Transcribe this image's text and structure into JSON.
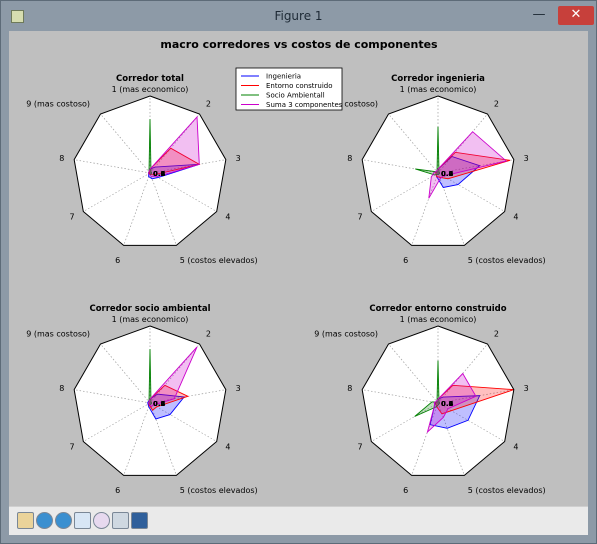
{
  "window": {
    "title": "Figure 1",
    "minimize_glyph": "—",
    "maximize_glyph": "☐",
    "close_glyph": "✕"
  },
  "toolbar": {
    "tools": [
      "home-icon",
      "back-arrow-icon",
      "forward-arrow-icon",
      "pan-icon",
      "zoom-icon",
      "configure-subplots-icon",
      "save-icon"
    ]
  },
  "colors": {
    "ingenieria": "#0000ff",
    "entorno": "#ff0000",
    "socio": "#008000",
    "suma": "#cc00cc",
    "figure_bg": "#bfbfbf"
  },
  "chart_data": {
    "type": "radar",
    "suptitle": "macro corredores vs costos de componentes",
    "axis_labels": [
      "1 (mas economico)",
      "2",
      "3",
      "4",
      "5 (costos elevados)",
      "6",
      "7",
      "8",
      "9 (mas costoso)"
    ],
    "center_tick_labels": [
      "0.8",
      "0.6",
      "0.4",
      "0.2"
    ],
    "rmax": 1.0,
    "legend": {
      "position": "top-center",
      "entries": [
        "Ingenieria",
        "Entorno construido",
        "Socio Ambientall",
        "Suma 3 componentes"
      ]
    },
    "panels": [
      {
        "title": "Corredor total",
        "series": [
          {
            "name": "Ingenieria",
            "values": [
              0.05,
              0.1,
              0.65,
              0.12,
              0.08,
              0.05,
              0.02,
              0.02,
              0.02
            ]
          },
          {
            "name": "Entorno construido",
            "values": [
              0.05,
              0.42,
              0.65,
              0.05,
              0.02,
              0.01,
              0.01,
              0.01,
              0.01
            ]
          },
          {
            "name": "Socio Ambientall",
            "values": [
              0.7,
              0.02,
              0.02,
              0.02,
              0.02,
              0.02,
              0.02,
              0.02,
              0.02
            ]
          },
          {
            "name": "Suma 3 componentes",
            "values": [
              0.05,
              0.95,
              0.65,
              0.1,
              0.05,
              0.02,
              0.02,
              0.02,
              0.02
            ]
          }
        ]
      },
      {
        "title": "Corredor ingenieria",
        "series": [
          {
            "name": "Ingenieria",
            "values": [
              0.05,
              0.28,
              0.55,
              0.3,
              0.2,
              0.05,
              0.03,
              0.03,
              0.03
            ]
          },
          {
            "name": "Entorno construido",
            "values": [
              0.05,
              0.35,
              0.95,
              0.15,
              0.06,
              0.05,
              0.03,
              0.03,
              0.03
            ]
          },
          {
            "name": "Socio Ambientall",
            "values": [
              0.6,
              0.02,
              0.02,
              0.02,
              0.02,
              0.02,
              0.05,
              0.3,
              0.02
            ]
          },
          {
            "name": "Suma 3 componentes",
            "values": [
              0.05,
              0.7,
              0.9,
              0.08,
              0.08,
              0.35,
              0.1,
              0.05,
              0.03
            ]
          }
        ]
      },
      {
        "title": "Corredor socio ambiental",
        "series": [
          {
            "name": "Ingenieria",
            "values": [
              0.05,
              0.15,
              0.45,
              0.3,
              0.22,
              0.05,
              0.03,
              0.03,
              0.03
            ]
          },
          {
            "name": "Entorno construido",
            "values": [
              0.05,
              0.3,
              0.5,
              0.1,
              0.1,
              0.03,
              0.02,
              0.02,
              0.02
            ]
          },
          {
            "name": "Socio Ambientall",
            "values": [
              0.7,
              0.02,
              0.02,
              0.02,
              0.02,
              0.02,
              0.02,
              0.02,
              0.02
            ]
          },
          {
            "name": "Suma 3 componentes",
            "values": [
              0.05,
              0.95,
              0.32,
              0.05,
              0.05,
              0.02,
              0.02,
              0.02,
              0.02
            ]
          }
        ]
      },
      {
        "title": "Corredor entorno construido",
        "series": [
          {
            "name": "Ingenieria",
            "values": [
              0.05,
              0.1,
              0.55,
              0.45,
              0.35,
              0.3,
              0.05,
              0.03,
              0.03
            ]
          },
          {
            "name": "Entorno construido",
            "values": [
              0.05,
              0.3,
              1.0,
              0.2,
              0.15,
              0.05,
              0.03,
              0.03,
              0.03
            ]
          },
          {
            "name": "Socio Ambientall",
            "values": [
              0.55,
              0.02,
              0.02,
              0.02,
              0.02,
              0.05,
              0.35,
              0.08,
              0.02
            ]
          },
          {
            "name": "Suma 3 componentes",
            "values": [
              0.05,
              0.5,
              0.5,
              0.15,
              0.2,
              0.4,
              0.05,
              0.05,
              0.03
            ]
          }
        ]
      }
    ]
  }
}
